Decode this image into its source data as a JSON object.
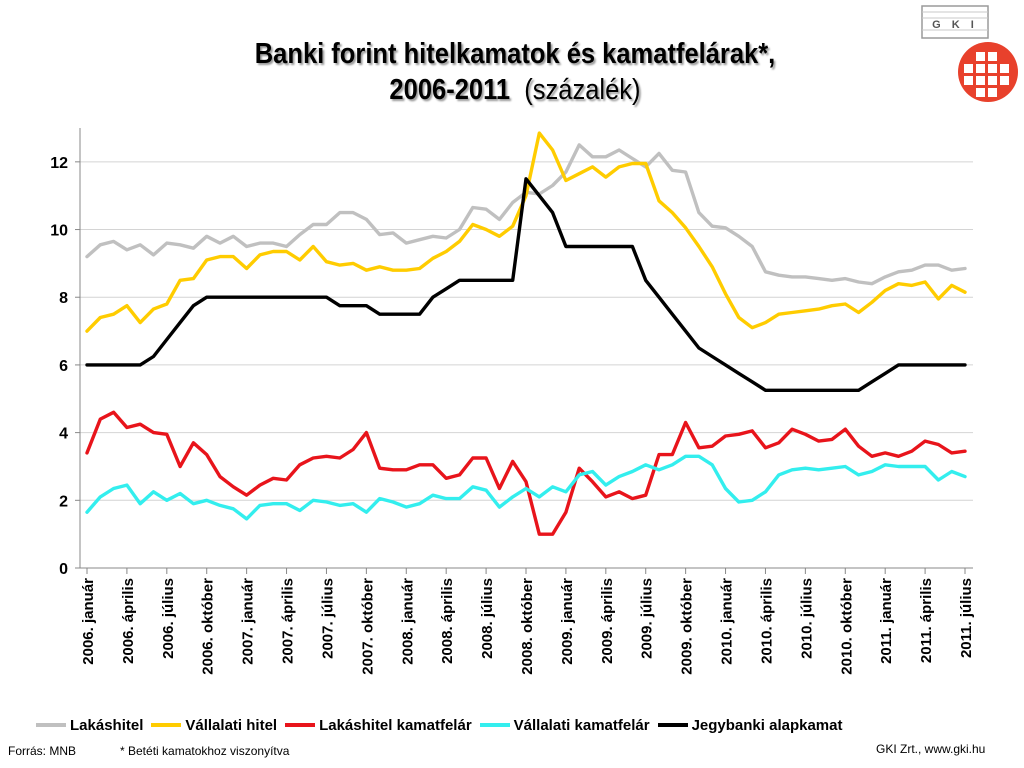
{
  "header": {
    "title_line1": "Banki forint hitelkamatok és kamatfelárak*,",
    "title_line2": "2006-2011",
    "title_paren": "(százalék)"
  },
  "logo": {
    "text": "G K I"
  },
  "footer": {
    "source": "Forrás: MNB",
    "note": "* Betéti kamatokhoz viszonyítva",
    "credit": "GKI Zrt., www.gki.hu"
  },
  "chart_data": {
    "type": "line",
    "ylim": [
      0,
      13
    ],
    "yticks": [
      0,
      2,
      4,
      6,
      8,
      10,
      12
    ],
    "grid": true,
    "legend_position": "bottom",
    "x": [
      "2006. január",
      "2006. február",
      "2006. március",
      "2006. április",
      "2006. május",
      "2006. június",
      "2006. július",
      "2006. augusztus",
      "2006. szeptember",
      "2006. október",
      "2006. november",
      "2006. december",
      "2007. január",
      "2007. február",
      "2007. március",
      "2007. április",
      "2007. május",
      "2007. június",
      "2007. július",
      "2007. augusztus",
      "2007. szeptember",
      "2007. október",
      "2007. november",
      "2007. december",
      "2008. január",
      "2008. február",
      "2008. március",
      "2008. április",
      "2008. május",
      "2008. június",
      "2008. július",
      "2008. augusztus",
      "2008. szeptember",
      "2008. október",
      "2008. november",
      "2008. december",
      "2009. január",
      "2009. február",
      "2009. március",
      "2009. április",
      "2009. május",
      "2009. június",
      "2009. július",
      "2009. augusztus",
      "2009. szeptember",
      "2009. október",
      "2009. november",
      "2009. december",
      "2010. január",
      "2010. február",
      "2010. március",
      "2010. április",
      "2010. május",
      "2010. június",
      "2010. július",
      "2010. augusztus",
      "2010. szeptember",
      "2010. október",
      "2010. november",
      "2010. december",
      "2011. január",
      "2011. február",
      "2011. március",
      "2011. április",
      "2011. május",
      "2011. június",
      "2011. július"
    ],
    "xtick_labels": [
      "2006. január",
      "2006. április",
      "2006. július",
      "2006. október",
      "2007. január",
      "2007. április",
      "2007. július",
      "2007. október",
      "2008. január",
      "2008. április",
      "2008. július",
      "2008. október",
      "2009. január",
      "2009. április",
      "2009. július",
      "2009. október",
      "2010. január",
      "2010. április",
      "2010. július",
      "2010. október",
      "2011. január",
      "2011. április",
      "2011. július"
    ],
    "series": [
      {
        "name": "Lakáshitel",
        "color": "#c0c0c0",
        "values": [
          9.2,
          9.55,
          9.65,
          9.4,
          9.55,
          9.25,
          9.6,
          9.55,
          9.45,
          9.8,
          9.6,
          9.8,
          9.5,
          9.6,
          9.6,
          9.5,
          9.85,
          10.15,
          10.15,
          10.5,
          10.5,
          10.3,
          9.85,
          9.9,
          9.6,
          9.7,
          9.8,
          9.75,
          10.0,
          10.65,
          10.6,
          10.3,
          10.8,
          11.1,
          11.05,
          11.3,
          11.7,
          12.5,
          12.15,
          12.15,
          12.35,
          12.1,
          11.85,
          12.25,
          11.75,
          11.7,
          10.5,
          10.1,
          10.05,
          9.8,
          9.5,
          8.75,
          8.65,
          8.6,
          8.6,
          8.55,
          8.5,
          8.55,
          8.45,
          8.4,
          8.6,
          8.75,
          8.8,
          8.95,
          8.95,
          8.8,
          8.85
        ]
      },
      {
        "name": "Vállalati hitel",
        "color": "#ffcc00",
        "values": [
          7.0,
          7.4,
          7.5,
          7.75,
          7.25,
          7.65,
          7.8,
          8.5,
          8.55,
          9.1,
          9.2,
          9.2,
          8.85,
          9.25,
          9.35,
          9.35,
          9.1,
          9.5,
          9.05,
          8.95,
          9.0,
          8.8,
          8.9,
          8.8,
          8.8,
          8.85,
          9.15,
          9.35,
          9.65,
          10.15,
          10.0,
          9.8,
          10.1,
          11.0,
          12.85,
          12.35,
          11.45,
          11.65,
          11.85,
          11.55,
          11.85,
          11.95,
          11.95,
          10.85,
          10.5,
          10.05,
          9.5,
          8.9,
          8.1,
          7.4,
          7.1,
          7.25,
          7.5,
          7.55,
          7.6,
          7.65,
          7.75,
          7.8,
          7.55,
          7.85,
          8.2,
          8.4,
          8.35,
          8.45,
          7.95,
          8.35,
          8.15
        ]
      },
      {
        "name": "Lakáshitel kamatfelár",
        "color": "#e8141b",
        "values": [
          3.4,
          4.4,
          4.6,
          4.15,
          4.25,
          4.0,
          3.95,
          3.0,
          3.7,
          3.35,
          2.7,
          2.4,
          2.15,
          2.45,
          2.65,
          2.6,
          3.05,
          3.25,
          3.3,
          3.25,
          3.5,
          4.0,
          2.95,
          2.9,
          2.9,
          3.05,
          3.05,
          2.65,
          2.75,
          3.25,
          3.25,
          2.35,
          3.15,
          2.55,
          1.0,
          1.0,
          1.65,
          2.95,
          2.55,
          2.1,
          2.25,
          2.05,
          2.15,
          3.35,
          3.35,
          4.3,
          3.55,
          3.6,
          3.9,
          3.95,
          4.05,
          3.55,
          3.7,
          4.1,
          3.95,
          3.75,
          3.8,
          4.1,
          3.6,
          3.3,
          3.4,
          3.3,
          3.45,
          3.75,
          3.65,
          3.4,
          3.45
        ]
      },
      {
        "name": "Vállalati kamatfelár",
        "color": "#33eeee",
        "values": [
          1.65,
          2.1,
          2.35,
          2.45,
          1.9,
          2.25,
          2.0,
          2.2,
          1.9,
          2.0,
          1.85,
          1.75,
          1.45,
          1.85,
          1.9,
          1.9,
          1.7,
          2.0,
          1.95,
          1.85,
          1.9,
          1.65,
          2.05,
          1.95,
          1.8,
          1.9,
          2.15,
          2.05,
          2.05,
          2.4,
          2.3,
          1.8,
          2.1,
          2.35,
          2.1,
          2.4,
          2.25,
          2.75,
          2.85,
          2.45,
          2.7,
          2.85,
          3.05,
          2.9,
          3.05,
          3.3,
          3.3,
          3.05,
          2.35,
          1.95,
          2.0,
          2.25,
          2.75,
          2.9,
          2.95,
          2.9,
          2.95,
          3.0,
          2.75,
          2.85,
          3.05,
          3.0,
          3.0,
          3.0,
          2.6,
          2.85,
          2.7
        ]
      },
      {
        "name": "Jegybanki alapkamat",
        "color": "#000000",
        "values": [
          6.0,
          6.0,
          6.0,
          6.0,
          6.0,
          6.25,
          6.75,
          7.25,
          7.75,
          8.0,
          8.0,
          8.0,
          8.0,
          8.0,
          8.0,
          8.0,
          8.0,
          8.0,
          8.0,
          7.75,
          7.75,
          7.75,
          7.5,
          7.5,
          7.5,
          7.5,
          8.0,
          8.25,
          8.5,
          8.5,
          8.5,
          8.5,
          8.5,
          11.5,
          11.0,
          10.5,
          9.5,
          9.5,
          9.5,
          9.5,
          9.5,
          9.5,
          8.5,
          8.0,
          7.5,
          7.0,
          6.5,
          6.25,
          6.0,
          5.75,
          5.5,
          5.25,
          5.25,
          5.25,
          5.25,
          5.25,
          5.25,
          5.25,
          5.25,
          5.5,
          5.75,
          6.0,
          6.0,
          6.0,
          6.0,
          6.0,
          6.0
        ]
      }
    ]
  }
}
